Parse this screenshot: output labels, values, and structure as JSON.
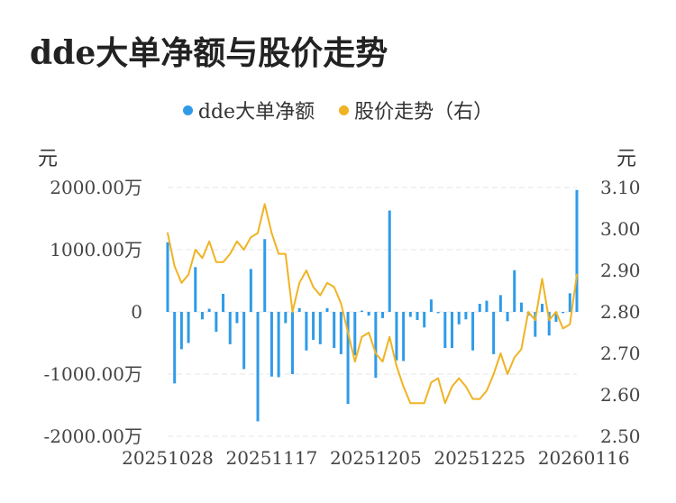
{
  "chart_data": {
    "type": "bar+line",
    "title": "dde大单净额与股价走势",
    "legend": [
      {
        "name": "dde大单净额",
        "color": "#2f9be8"
      },
      {
        "name": "股价走势（右）",
        "color": "#f0b323"
      }
    ],
    "left_unit": "元",
    "right_unit": "元",
    "y_left": {
      "min": -2000,
      "max": 2000,
      "ticks": [
        2000,
        1000,
        0,
        -1000,
        -2000
      ],
      "tick_labels": [
        "2000.00万",
        "1000.00万",
        "0",
        "-1000.00万",
        "-2000.00万"
      ]
    },
    "y_right": {
      "min": 2.5,
      "max": 3.1,
      "ticks": [
        3.1,
        3.0,
        2.9,
        2.8,
        2.7,
        2.6,
        2.5
      ],
      "tick_labels": [
        "3.10",
        "3.00",
        "2.90",
        "2.80",
        "2.70",
        "2.60",
        "2.50"
      ]
    },
    "x_tick_labels": [
      {
        "index": 0,
        "label": "20251028"
      },
      {
        "index": 15,
        "label": "20251117"
      },
      {
        "index": 30,
        "label": "20251205"
      },
      {
        "index": 45,
        "label": "20251225"
      },
      {
        "index": 60,
        "label": "20260116"
      }
    ],
    "bars": [
      1120,
      -1150,
      -600,
      -500,
      720,
      -120,
      50,
      -320,
      290,
      -520,
      -180,
      -920,
      690,
      -1760,
      1170,
      -1040,
      -1050,
      -180,
      -1000,
      60,
      -620,
      -450,
      -520,
      60,
      -580,
      -680,
      -1480,
      -700,
      20,
      -60,
      -1060,
      -100,
      1630,
      -780,
      -790,
      -80,
      -130,
      -250,
      200,
      -20,
      -580,
      -580,
      -200,
      -120,
      -620,
      130,
      180,
      -680,
      270,
      -150,
      670,
      150,
      -60,
      -400,
      130,
      -380,
      -160,
      -20,
      300,
      1960
    ],
    "price": [
      2.99,
      2.91,
      2.87,
      2.89,
      2.95,
      2.93,
      2.97,
      2.92,
      2.92,
      2.94,
      2.97,
      2.95,
      2.98,
      2.99,
      3.06,
      2.99,
      2.94,
      2.94,
      2.8,
      2.87,
      2.9,
      2.86,
      2.84,
      2.87,
      2.86,
      2.82,
      2.75,
      2.68,
      2.74,
      2.75,
      2.7,
      2.68,
      2.74,
      2.67,
      2.62,
      2.58,
      2.58,
      2.58,
      2.63,
      2.64,
      2.58,
      2.62,
      2.64,
      2.62,
      2.59,
      2.59,
      2.61,
      2.65,
      2.7,
      2.65,
      2.69,
      2.71,
      2.8,
      2.78,
      2.88,
      2.78,
      2.8,
      2.76,
      2.77,
      2.89
    ]
  }
}
